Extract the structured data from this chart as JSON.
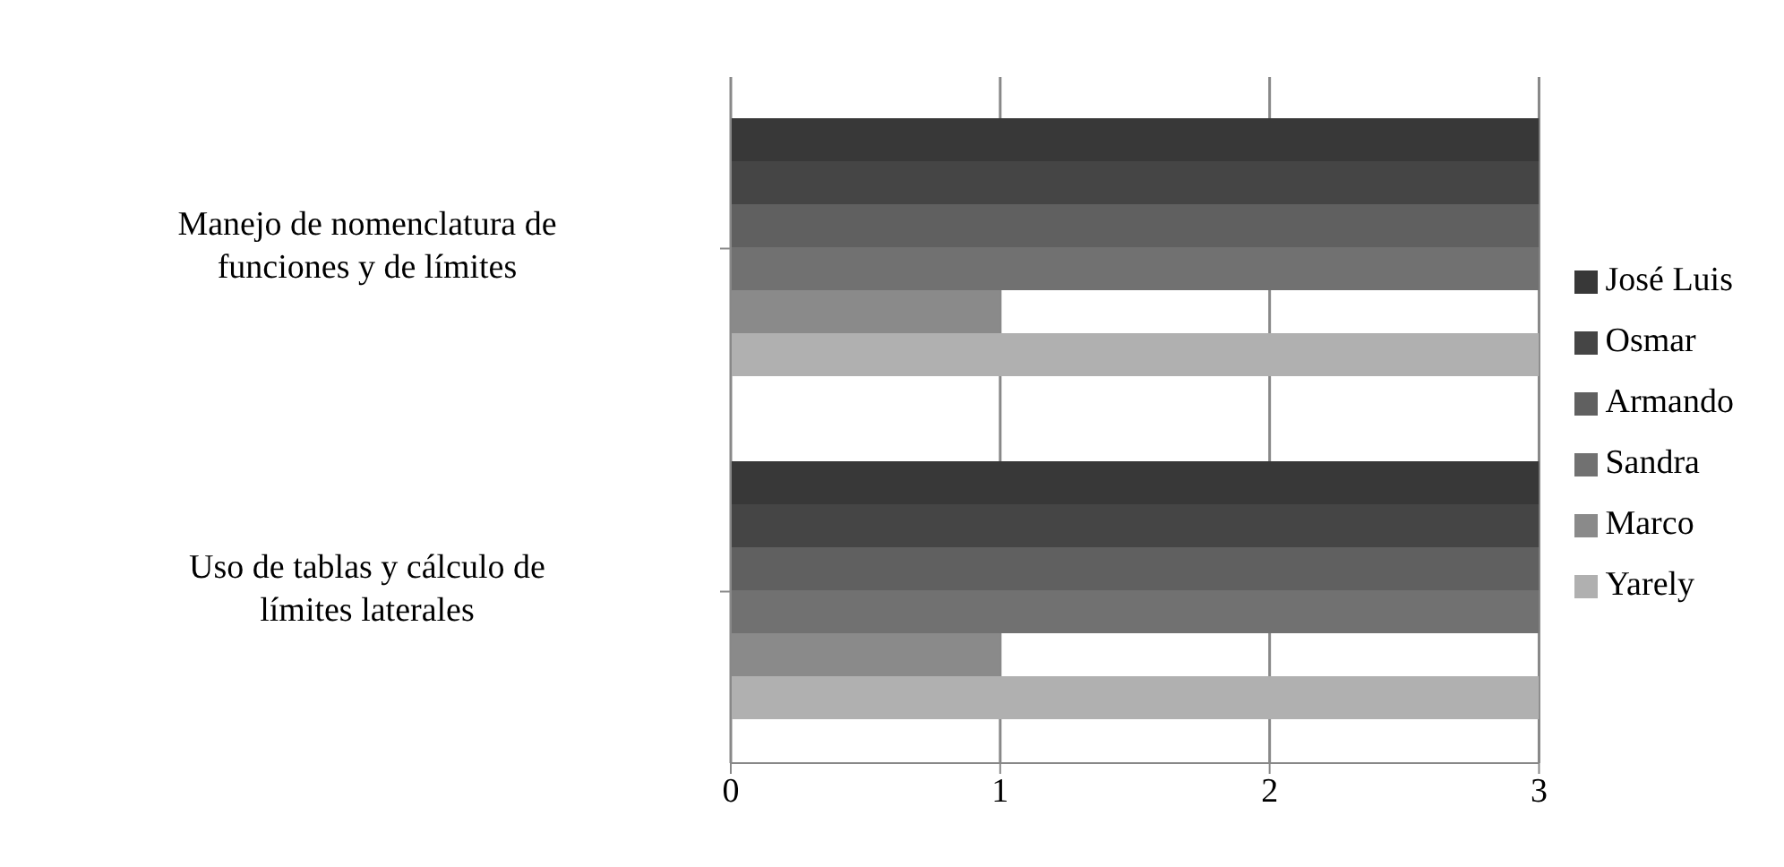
{
  "chart_data": {
    "type": "bar",
    "orientation": "horizontal",
    "categories": [
      "Manejo de nomenclatura de funciones y de límites",
      "Uso de tablas y cálculo de límites laterales"
    ],
    "series": [
      {
        "name": "José Luis",
        "color": "#383838",
        "values": [
          3,
          3
        ]
      },
      {
        "name": "Osmar",
        "color": "#454545",
        "values": [
          3,
          3
        ]
      },
      {
        "name": "Armando",
        "color": "#606060",
        "values": [
          3,
          3
        ]
      },
      {
        "name": "Sandra",
        "color": "#717171",
        "values": [
          3,
          3
        ]
      },
      {
        "name": "Marco",
        "color": "#8a8a8a",
        "values": [
          1,
          1
        ]
      },
      {
        "name": "Yarely",
        "color": "#b0b0b0",
        "values": [
          3,
          3
        ]
      }
    ],
    "xlim": [
      0,
      3
    ],
    "xticks": [
      0,
      1,
      2,
      3
    ],
    "grid": "x",
    "legend": "right"
  }
}
